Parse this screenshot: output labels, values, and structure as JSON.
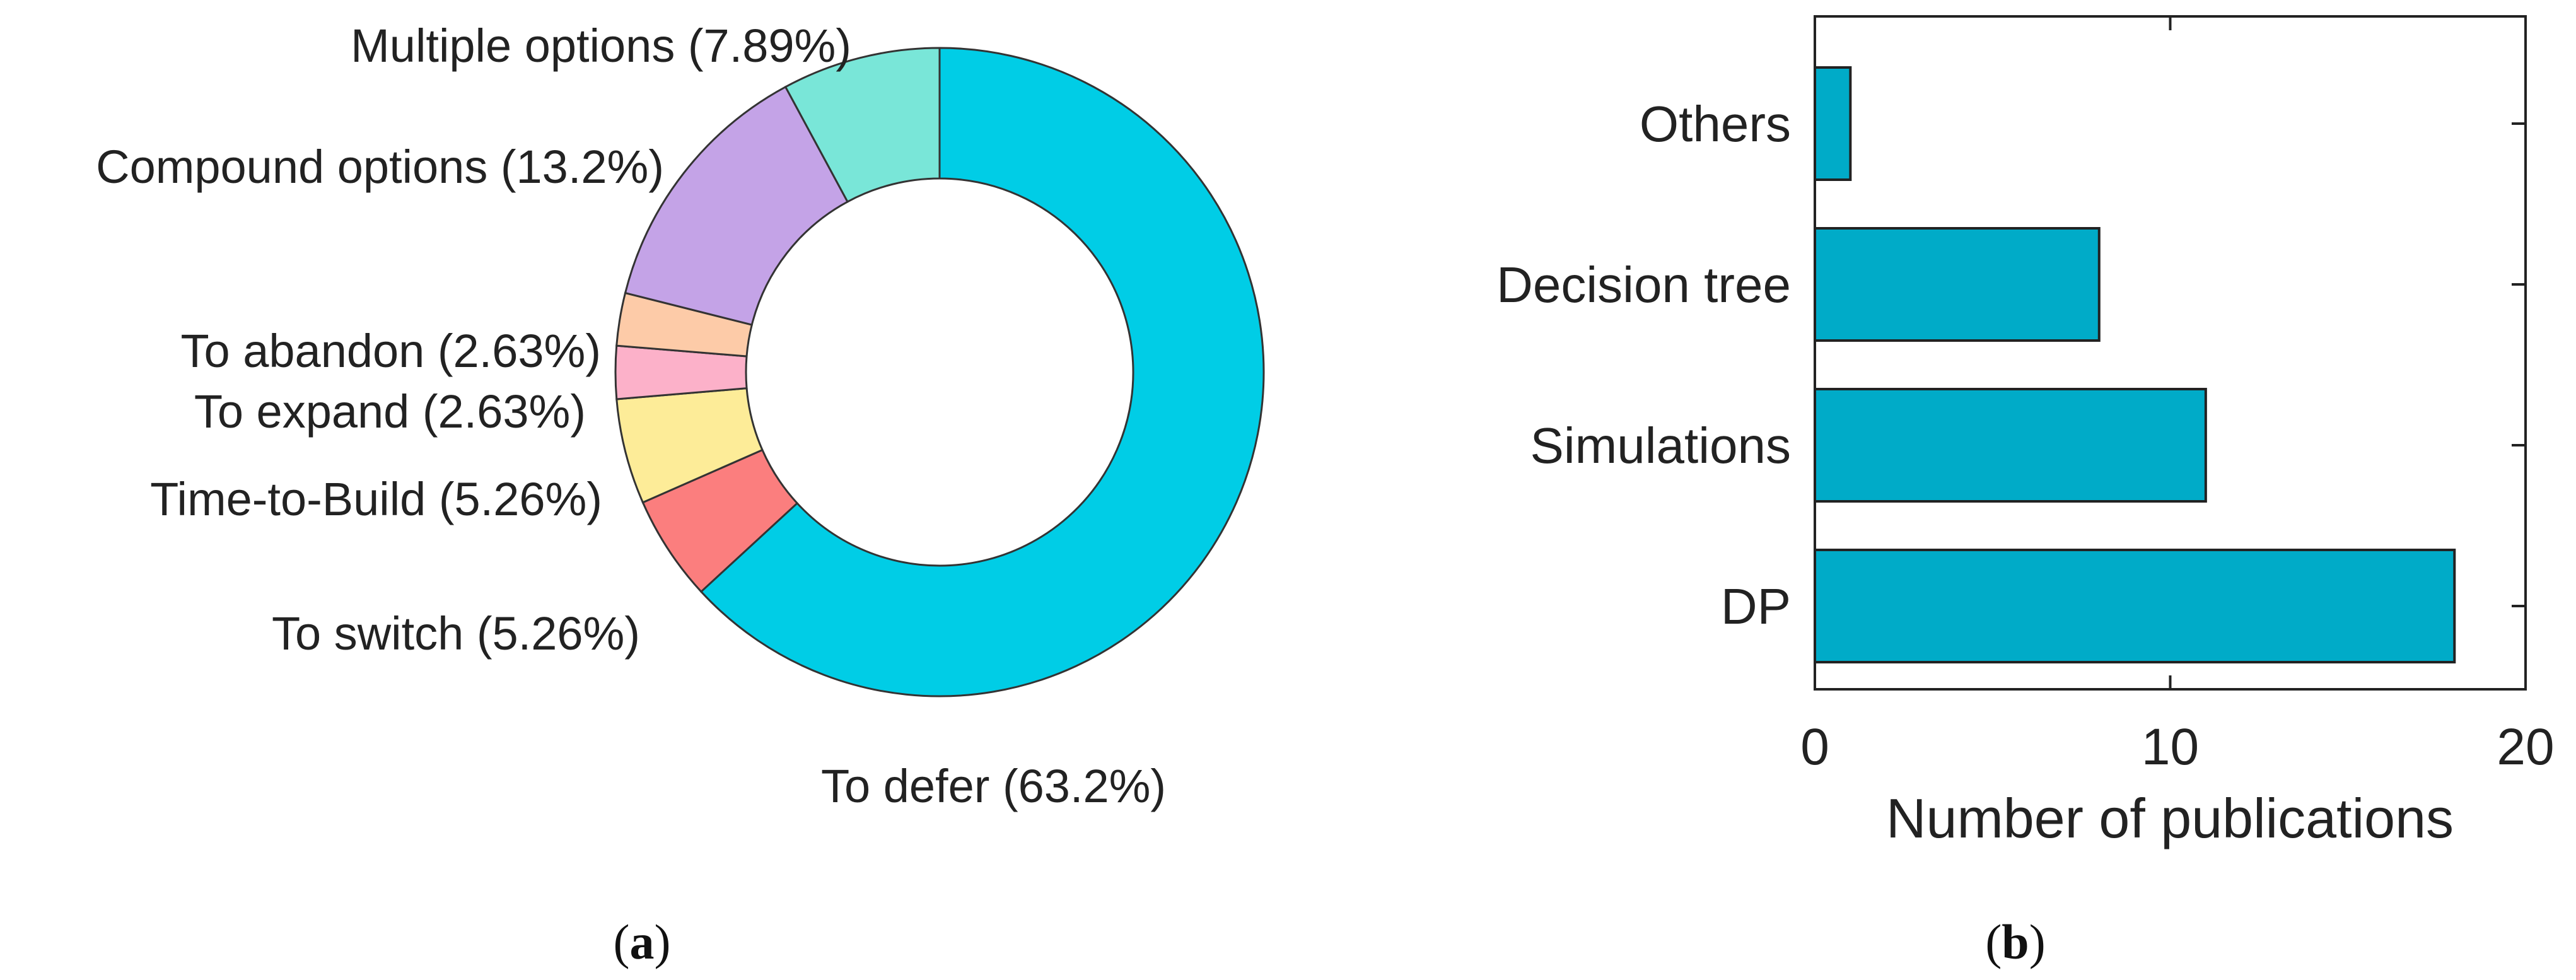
{
  "chart_data": [
    {
      "type": "pie",
      "variant": "donut",
      "panel_label": "a",
      "slices": [
        {
          "label": "To defer (63.2%)",
          "value": 63.2,
          "color": "#00cde6"
        },
        {
          "label": "To switch (5.26%)",
          "value": 5.26,
          "color": "#fb7e7e"
        },
        {
          "label": "Time-to-Build (5.26%)",
          "value": 5.26,
          "color": "#fdec98"
        },
        {
          "label": "To expand (2.63%)",
          "value": 2.63,
          "color": "#fcb1c9"
        },
        {
          "label": "To abandon (2.63%)",
          "value": 2.63,
          "color": "#fdcba8"
        },
        {
          "label": "Compound options (13.2%)",
          "value": 13.2,
          "color": "#c4a3e7"
        },
        {
          "label": "Multiple options (7.89%)",
          "value": 7.89,
          "color": "#79e6d8"
        }
      ]
    },
    {
      "type": "bar",
      "orientation": "horizontal",
      "panel_label": "b",
      "categories": [
        "DP",
        "Simulations",
        "Decision tree",
        "Others"
      ],
      "values": [
        18,
        11,
        8,
        1
      ],
      "xlabel": "Number of publications",
      "xlim": [
        0,
        20
      ],
      "xticks": [
        0,
        10,
        20
      ],
      "bar_color": "#00abc8",
      "grid": false
    }
  ]
}
